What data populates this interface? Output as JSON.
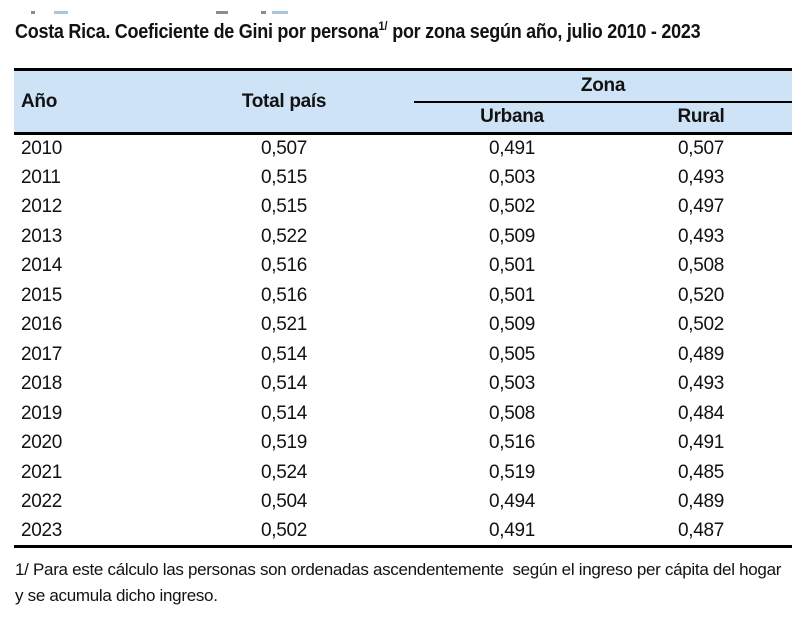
{
  "title": {
    "prefix": "Costa Rica. Coeficiente de Gini por persona",
    "superscript": "1/",
    "suffix": " por zona según año, julio 2010 - 2023"
  },
  "table": {
    "columns": {
      "year": "Año",
      "total": "Total país",
      "zone_group": "Zona",
      "urban": "Urbana",
      "rural": "Rural"
    },
    "rows": [
      {
        "year": "2010",
        "total": "0,507",
        "urban": "0,491",
        "rural": "0,507"
      },
      {
        "year": "2011",
        "total": "0,515",
        "urban": "0,503",
        "rural": "0,493"
      },
      {
        "year": "2012",
        "total": "0,515",
        "urban": "0,502",
        "rural": "0,497"
      },
      {
        "year": "2013",
        "total": "0,522",
        "urban": "0,509",
        "rural": "0,493"
      },
      {
        "year": "2014",
        "total": "0,516",
        "urban": "0,501",
        "rural": "0,508"
      },
      {
        "year": "2015",
        "total": "0,516",
        "urban": "0,501",
        "rural": "0,520"
      },
      {
        "year": "2016",
        "total": "0,521",
        "urban": "0,509",
        "rural": "0,502"
      },
      {
        "year": "2017",
        "total": "0,514",
        "urban": "0,505",
        "rural": "0,489"
      },
      {
        "year": "2018",
        "total": "0,514",
        "urban": "0,503",
        "rural": "0,493"
      },
      {
        "year": "2019",
        "total": "0,514",
        "urban": "0,508",
        "rural": "0,484"
      },
      {
        "year": "2020",
        "total": "0,519",
        "urban": "0,516",
        "rural": "0,491"
      },
      {
        "year": "2021",
        "total": "0,524",
        "urban": "0,519",
        "rural": "0,485"
      },
      {
        "year": "2022",
        "total": "0,504",
        "urban": "0,494",
        "rural": "0,489"
      },
      {
        "year": "2023",
        "total": "0,502",
        "urban": "0,491",
        "rural": "0,487"
      }
    ]
  },
  "footnote": {
    "text": "1/ Para este cálculo las personas son ordenadas ascendentemente  según el ingreso per cápita del hogar y se acumula dicho ingreso."
  },
  "colors": {
    "header_bg": "#cee4f6",
    "border": "#000000",
    "text": "#121212"
  }
}
